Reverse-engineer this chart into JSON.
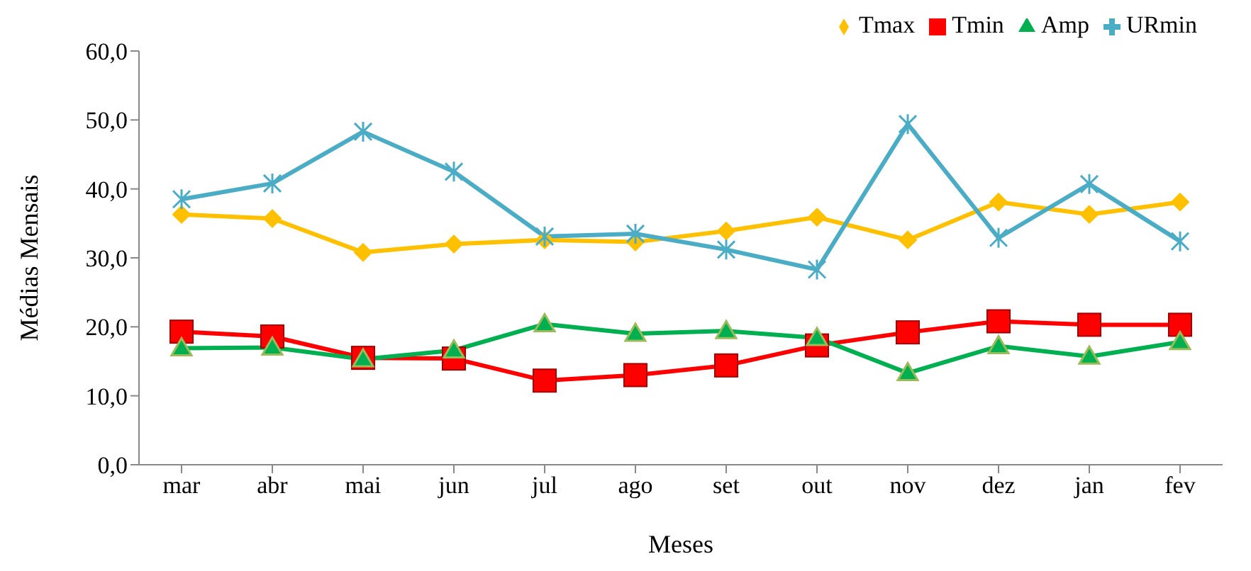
{
  "chart_data": {
    "type": "line",
    "xlabel": "Meses",
    "ylabel": "Médias Mensais",
    "categories": [
      "mar",
      "abr",
      "mai",
      "jun",
      "jul",
      "ago",
      "set",
      "out",
      "nov",
      "dez",
      "jan",
      "fev"
    ],
    "series": [
      {
        "name": "Tmax",
        "color": "#ffc000",
        "marker": "diamond",
        "values": [
          36.3,
          35.7,
          30.8,
          32.0,
          32.6,
          32.3,
          33.9,
          35.9,
          32.6,
          38.1,
          36.3,
          38.1
        ]
      },
      {
        "name": "Tmin",
        "color": "#ff0000",
        "marker": "square",
        "values": [
          19.3,
          18.6,
          15.5,
          15.4,
          12.2,
          13.0,
          14.4,
          17.3,
          19.2,
          20.8,
          20.3,
          20.3
        ]
      },
      {
        "name": "Amp",
        "color": "#00b050",
        "marker": "triangle",
        "values": [
          16.9,
          17.0,
          15.3,
          16.6,
          20.4,
          19.0,
          19.4,
          18.4,
          13.3,
          17.2,
          15.7,
          17.8
        ]
      },
      {
        "name": "URmin",
        "color": "#4bacc6",
        "marker": "cross",
        "values": [
          38.5,
          40.8,
          48.3,
          42.5,
          33.1,
          33.5,
          31.2,
          28.3,
          49.4,
          32.9,
          40.7,
          32.4
        ]
      }
    ],
    "ylim": [
      0,
      60
    ],
    "yticks": [
      {
        "value": 0,
        "label": "0,0"
      },
      {
        "value": 10,
        "label": "10,0"
      },
      {
        "value": 20,
        "label": "20,0"
      },
      {
        "value": 30,
        "label": "30,0"
      },
      {
        "value": 40,
        "label": "40,0"
      },
      {
        "value": 50,
        "label": "50,0"
      },
      {
        "value": 60,
        "label": "60,0"
      }
    ],
    "grid": false,
    "legend": "top right",
    "line_style": "solid"
  }
}
